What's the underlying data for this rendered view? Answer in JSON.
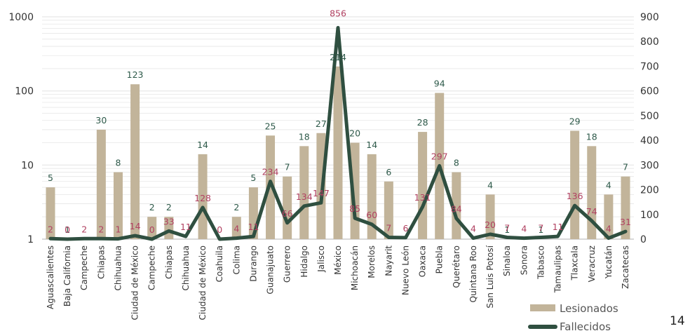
{
  "page_number": "14",
  "colors": {
    "bars": "#c2b49a",
    "line": "#2f4f40",
    "lesionados_label": "#2e5a4a",
    "fallecidos_label": "#b04060",
    "grid": "#e6e6e6"
  },
  "chart_data": {
    "type": "bar",
    "categories": [
      "Aguascalientes",
      "Baja California",
      "Campeche",
      "Chiapas",
      "Chihuahua",
      "Ciudad de México",
      "Campeche",
      "Chiapas",
      "Chihuahua",
      "Ciudad de México",
      "Coahuila",
      "Colima",
      "Durango",
      "Guanajuato",
      "Guerrero",
      "Hidalgo",
      "Jalisco",
      "México",
      "Michoacán",
      "Morelos",
      "Nayarit",
      "Nuevo León",
      "Oaxaca",
      "Puebla",
      "Querétaro",
      "Quintana Roo",
      "San Luis Potosí",
      "Sinaloa",
      "Sonora",
      "Tabasco",
      "Tamaulipas",
      "Tlaxcala",
      "Veracruz",
      "Yucatán",
      "Zacatecas"
    ],
    "series": [
      {
        "name": "Lesionados",
        "type": "bar",
        "axis": "left-log",
        "values": [
          5,
          1,
          1,
          30,
          8,
          123,
          2,
          2,
          1,
          14,
          1,
          2,
          5,
          25,
          7,
          18,
          27,
          214,
          20,
          14,
          6,
          1,
          28,
          94,
          8,
          1,
          4,
          1,
          1,
          1,
          1,
          29,
          18,
          4,
          7
        ],
        "labels": [
          "5",
          "1",
          "",
          "30",
          "8",
          "123",
          "2",
          "2",
          "",
          "14",
          "",
          "2",
          "5",
          "25",
          "7",
          "18",
          "27",
          "214",
          "20",
          "14",
          "6",
          "",
          "28",
          "94",
          "8",
          "",
          "4",
          "1",
          "",
          "1",
          "",
          "29",
          "18",
          "4",
          "7"
        ]
      },
      {
        "name": "Fallecidos",
        "type": "line",
        "axis": "right-linear",
        "values": [
          2,
          0,
          2,
          2,
          1,
          14,
          0,
          33,
          11,
          128,
          0,
          4,
          11,
          234,
          66,
          134,
          147,
          856,
          85,
          60,
          7,
          6,
          131,
          297,
          84,
          4,
          20,
          7,
          4,
          7,
          11,
          136,
          74,
          4,
          31
        ],
        "labels": [
          "2",
          "0",
          "2",
          "2",
          "1",
          "14",
          "0",
          "33",
          "11",
          "128",
          "0",
          "4",
          "11",
          "234",
          "66",
          "134",
          "147",
          "856",
          "85",
          "60",
          "7",
          "6",
          "131",
          "297",
          "84",
          "4",
          "20",
          "7",
          "4",
          "7",
          "11",
          "136",
          "74",
          "4",
          "31"
        ]
      }
    ],
    "y_left": {
      "scale": "log",
      "ylim": [
        1,
        1000
      ],
      "ticks": [
        "1",
        "10",
        "100",
        "1000"
      ]
    },
    "y_right": {
      "scale": "linear",
      "ylim": [
        0,
        900
      ],
      "ticks": [
        "0",
        "100",
        "200",
        "300",
        "400",
        "500",
        "600",
        "700",
        "800",
        "900"
      ]
    },
    "legend": {
      "placement": "bottom-right",
      "entries": [
        "Lesionados",
        "Fallecidos"
      ]
    },
    "grid": true
  }
}
